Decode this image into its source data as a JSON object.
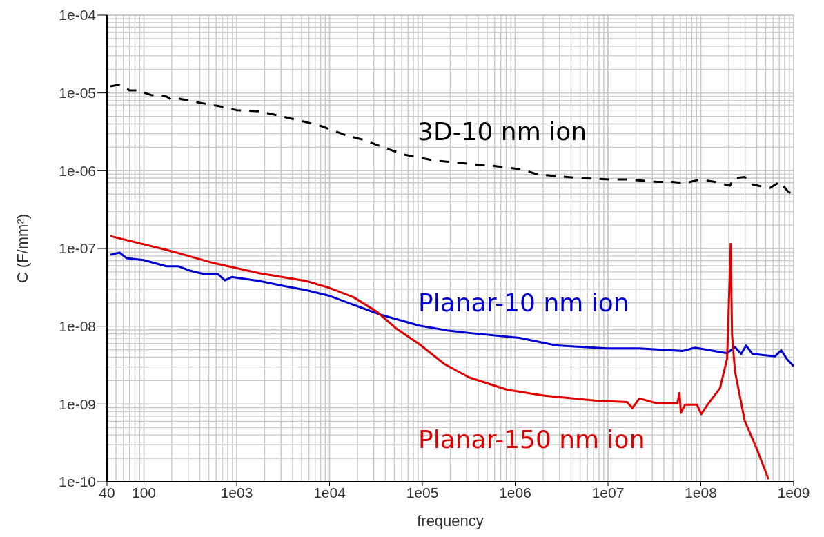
{
  "chart_data": {
    "type": "line",
    "xlabel": "frequency",
    "ylabel": "C (F/mm²)",
    "log": "xy",
    "grid": true,
    "legend": false,
    "marker": "none",
    "xlim": [
      40,
      1000000000
    ],
    "xticks": [
      40,
      100,
      {
        "value": 1000,
        "label": "1e03"
      },
      {
        "value": 10000,
        "label": "1e04"
      },
      {
        "value": 100000,
        "label": "1e05"
      },
      {
        "value": 1000000,
        "label": "1e06"
      },
      {
        "value": 10000000,
        "label": "1e07"
      },
      {
        "value": 100000000,
        "label": "1e08"
      },
      {
        "value": 1000000000,
        "label": "1e09"
      }
    ],
    "ylim": [
      1e-10,
      0.0001
    ],
    "yticks": [
      {
        "value": 1e-10,
        "label": "1e-10"
      },
      {
        "value": 1e-09,
        "label": "1e-09"
      },
      {
        "value": 1e-08,
        "label": "1e-08"
      },
      {
        "value": 1e-07,
        "label": "1e-07"
      },
      {
        "value": 1e-06,
        "label": "1e-06"
      },
      {
        "value": 1e-05,
        "label": "1e-05"
      },
      {
        "value": 0.0001,
        "label": "1e-04"
      }
    ],
    "series": [
      {
        "name": "3D-10 nm ion",
        "color": "#000000",
        "line_style": "dashed",
        "x": [
          43.6,
          54.7,
          69.8,
          84.6,
          120,
          175,
          198,
          236,
          352,
          670,
          1000,
          1780,
          2840,
          5420,
          8070,
          15400,
          23000,
          43700,
          65300,
          131000,
          385000,
          594000,
          1170000,
          1720000,
          3630000,
          5240000,
          11100000,
          16000000,
          33700000,
          49400000,
          67600000,
          97500000,
          141000000,
          206000000,
          225000000,
          297000000,
          360000000,
          459000000,
          556000000,
          710000000,
          859000000,
          1000000000
        ],
        "values": [
          1.22e-05,
          1.28e-05,
          1.08e-05,
          1.08e-05,
          9.4e-06,
          9e-06,
          8.2e-06,
          8.5e-06,
          7.7e-06,
          6.7e-06,
          6e-06,
          5.8e-06,
          5.1e-06,
          4.25e-06,
          3.76e-06,
          2.83e-06,
          2.5e-06,
          1.88e-06,
          1.6e-06,
          1.36e-06,
          1.2e-06,
          1.15e-06,
          1.04e-06,
          9e-07,
          8.3e-07,
          8e-07,
          7.7e-07,
          7.7e-07,
          7.2e-07,
          7.2e-07,
          6.9e-07,
          7.7e-07,
          7.2e-07,
          6.4e-07,
          8e-07,
          8.3e-07,
          6.65e-07,
          6.25e-07,
          6e-07,
          7.2e-07,
          5.5e-07,
          4.8e-07
        ]
      },
      {
        "name": "Planar-10 nm ion",
        "color": "#0000d0",
        "line_style": "solid",
        "x": [
          43.6,
          54.7,
          65.2,
          98.9,
          175,
          236,
          312,
          442,
          625,
          745,
          885,
          1780,
          3210,
          5700,
          10100,
          18300,
          36700,
          92500,
          185000,
          318000,
          1110000,
          2800000,
          9800000,
          21800000,
          63100000,
          86300000,
          192000000,
          233000000,
          272000000,
          308000000,
          360000000,
          628000000,
          735000000,
          859000000,
          1000000000
        ],
        "values": [
          8.3e-08,
          8.85e-08,
          7.5e-08,
          7.1e-08,
          5.9e-08,
          5.9e-08,
          5.2e-08,
          4.7e-08,
          4.7e-08,
          3.9e-08,
          4.3e-08,
          3.8e-08,
          3.3e-08,
          2.9e-08,
          2.45e-08,
          1.88e-08,
          1.39e-08,
          1.02e-08,
          8.85e-09,
          8.2e-09,
          7.1e-09,
          5.65e-09,
          5.2e-09,
          5.2e-09,
          4.8e-09,
          5.3e-09,
          4.5e-09,
          5.4e-09,
          4.4e-09,
          5.65e-09,
          4.4e-09,
          4.1e-09,
          4.9e-09,
          3.7e-09,
          3.07e-09
        ]
      },
      {
        "name": "Planar-150 nm ion",
        "color": "#e00000",
        "line_style": "solid",
        "x": [
          43.6,
          175,
          564,
          1780,
          5700,
          10100,
          18300,
          32500,
          52000,
          92500,
          173000,
          318000,
          813000,
          2080000,
          7170000,
          16000000,
          18300000,
          21800000,
          33700000,
          55800000,
          58900000,
          61000000,
          67600000,
          91000000,
          101000000,
          118000000,
          161000000,
          192000000,
          210000000,
          217000000,
          233000000,
          297000000,
          406000000,
          536000000
        ],
        "values": [
          1.44e-07,
          9.6e-08,
          6.5e-08,
          4.8e-08,
          3.8e-08,
          3.1e-08,
          2.35e-08,
          1.53e-08,
          9.4e-09,
          5.9e-09,
          3.26e-09,
          2.2e-09,
          1.53e-09,
          1.28e-09,
          1.11e-09,
          1.06e-09,
          8.9e-10,
          1.18e-09,
          1.02e-09,
          1.02e-09,
          1.39e-09,
          7.7e-10,
          9.8e-10,
          9.8e-10,
          7.4e-10,
          9.8e-10,
          1.6e-09,
          3.84e-09,
          1.15e-07,
          7.8e-09,
          2.66e-09,
          6.1e-10,
          2.55e-10,
          1.08e-10
        ]
      }
    ]
  }
}
